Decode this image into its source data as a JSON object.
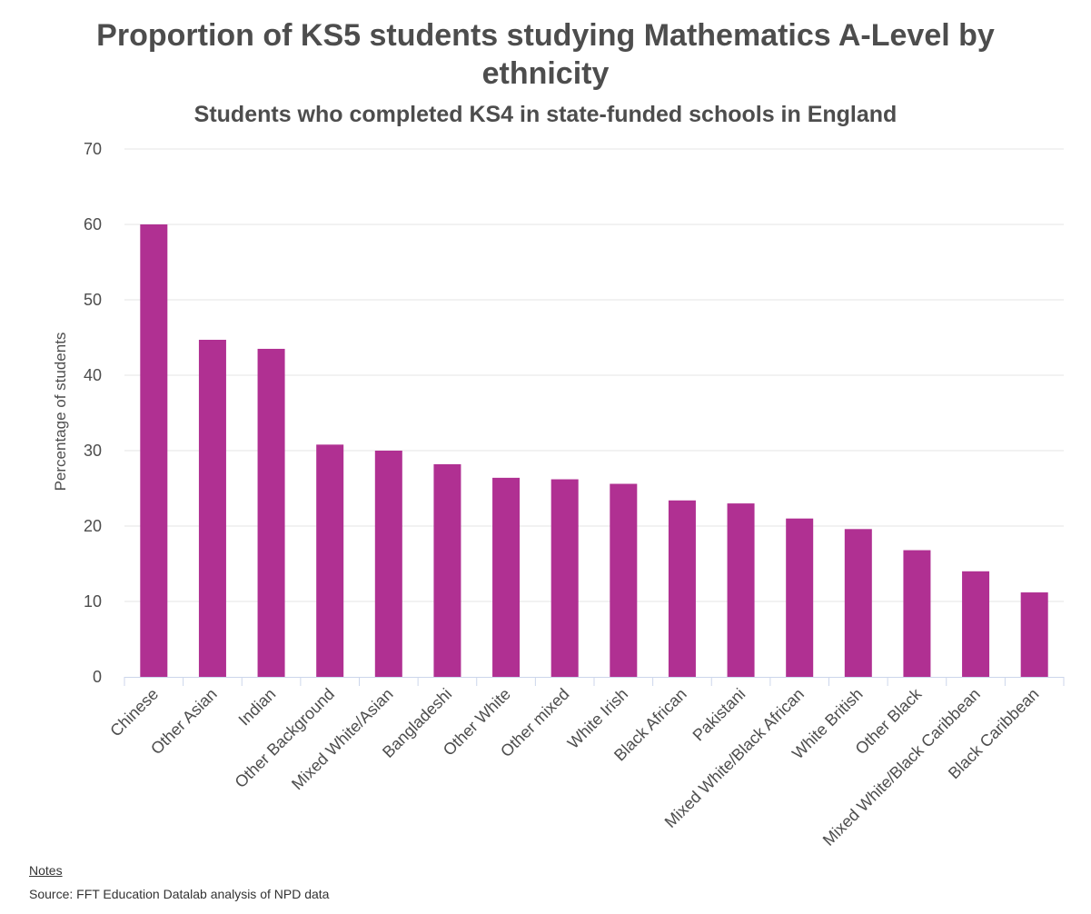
{
  "title": "Proportion of KS5 students studying Mathematics A-Level by ethnicity",
  "subtitle": "Students who completed KS4 in state-funded schools in England",
  "notes_label": "Notes",
  "source": "Source: FFT Education Datalab analysis of NPD data",
  "colors": {
    "bar": "#b03092",
    "grid": "#e6e6e6",
    "axis": "#ccd6eb",
    "text": "#4d4d4d"
  },
  "chart_data": {
    "type": "bar",
    "title": "Proportion of KS5 students studying Mathematics A-Level by ethnicity",
    "subtitle": "Students who completed KS4 in state-funded schools in England",
    "xlabel": "",
    "ylabel": "Percentage of students",
    "ylim": [
      0,
      70
    ],
    "yticks": [
      0,
      10,
      20,
      30,
      40,
      50,
      60,
      70
    ],
    "grid": true,
    "legend": "none",
    "categories": [
      "Chinese",
      "Other Asian",
      "Indian",
      "Other Background",
      "Mixed White/Asian",
      "Bangladeshi",
      "Other White",
      "Other mixed",
      "White Irish",
      "Black African",
      "Pakistani",
      "Mixed White/Black African",
      "White British",
      "Other Black",
      "Mixed White/Black Caribbean",
      "Black Caribbean"
    ],
    "values": [
      60.0,
      44.7,
      43.5,
      30.8,
      30.0,
      28.2,
      26.4,
      26.2,
      25.6,
      23.4,
      23.0,
      21.0,
      19.6,
      16.8,
      14.0,
      11.2
    ]
  }
}
